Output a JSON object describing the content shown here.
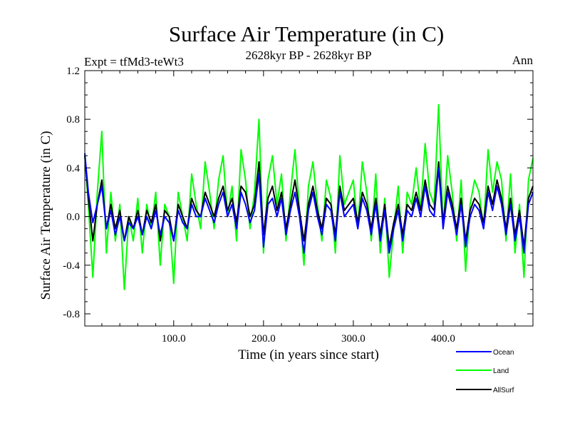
{
  "chart_data": {
    "type": "line",
    "title": "Surface Air Temperature (in C)",
    "subtitle": "2628kyr BP - 2628kyr BP",
    "experiment_label": "Expt = tfMd3-teWt3",
    "period_label": "Ann",
    "xlabel": "Time (in years since start)",
    "ylabel": "Surface Air Temperature (in C)",
    "xlim": [
      1,
      500
    ],
    "ylim": [
      -0.9,
      1.2
    ],
    "xticks": [
      100,
      200,
      300,
      400
    ],
    "xtick_labels": [
      "100.0",
      "200.0",
      "300.0",
      "400.0"
    ],
    "yticks": [
      -0.8,
      -0.4,
      0.0,
      0.4,
      0.8,
      1.2
    ],
    "ytick_labels": [
      "-0.8",
      "-0.4",
      "0.0",
      "0.4",
      "0.8",
      "1.2"
    ],
    "zero_line": 0.0,
    "legend_position": "bottom-right",
    "series": [
      {
        "name": "Land",
        "color": "#00ff00",
        "x": [
          1,
          5,
          10,
          15,
          20,
          25,
          30,
          35,
          40,
          45,
          50,
          55,
          60,
          65,
          70,
          75,
          80,
          85,
          90,
          95,
          100,
          105,
          110,
          115,
          120,
          125,
          130,
          135,
          140,
          145,
          150,
          155,
          160,
          165,
          170,
          175,
          180,
          185,
          190,
          195,
          200,
          205,
          210,
          215,
          220,
          225,
          230,
          235,
          240,
          245,
          250,
          255,
          260,
          265,
          270,
          275,
          280,
          285,
          290,
          295,
          300,
          305,
          310,
          315,
          320,
          325,
          330,
          335,
          340,
          345,
          350,
          355,
          360,
          365,
          370,
          375,
          380,
          385,
          390,
          395,
          400,
          405,
          410,
          415,
          420,
          425,
          430,
          435,
          440,
          445,
          450,
          455,
          460,
          465,
          470,
          475,
          480,
          485,
          490,
          495,
          500
        ],
        "values": [
          0.5,
          0.1,
          -0.5,
          0.2,
          0.7,
          -0.3,
          0.2,
          -0.2,
          0.1,
          -0.6,
          0.0,
          -0.2,
          0.15,
          -0.3,
          0.1,
          -0.1,
          0.2,
          -0.4,
          0.1,
          0.0,
          -0.55,
          0.2,
          0.0,
          -0.2,
          0.35,
          0.1,
          -0.1,
          0.45,
          0.2,
          -0.1,
          0.3,
          0.5,
          0.0,
          0.25,
          -0.2,
          0.55,
          0.3,
          -0.1,
          0.2,
          0.8,
          -0.3,
          0.3,
          0.5,
          0.1,
          0.35,
          -0.2,
          0.2,
          0.55,
          0.05,
          -0.4,
          0.25,
          0.45,
          0.1,
          -0.2,
          0.3,
          0.15,
          -0.3,
          0.5,
          0.1,
          0.2,
          0.3,
          -0.1,
          0.45,
          0.2,
          -0.2,
          0.35,
          -0.3,
          0.15,
          -0.5,
          -0.1,
          0.25,
          -0.3,
          0.2,
          0.1,
          0.4,
          0.05,
          0.6,
          0.2,
          0.1,
          0.92,
          -0.1,
          0.5,
          0.2,
          -0.2,
          0.3,
          -0.45,
          0.1,
          0.3,
          0.2,
          -0.1,
          0.55,
          0.2,
          0.45,
          0.3,
          -0.2,
          0.35,
          -0.3,
          0.1,
          -0.5,
          0.3,
          0.48
        ]
      },
      {
        "name": "AllSurf",
        "color": "#000000",
        "x": [
          1,
          5,
          10,
          15,
          20,
          25,
          30,
          35,
          40,
          45,
          50,
          55,
          60,
          65,
          70,
          75,
          80,
          85,
          90,
          95,
          100,
          105,
          110,
          115,
          120,
          125,
          130,
          135,
          140,
          145,
          150,
          155,
          160,
          165,
          170,
          175,
          180,
          185,
          190,
          195,
          200,
          205,
          210,
          215,
          220,
          225,
          230,
          235,
          240,
          245,
          250,
          255,
          260,
          265,
          270,
          275,
          280,
          285,
          290,
          295,
          300,
          305,
          310,
          315,
          320,
          325,
          330,
          335,
          340,
          345,
          350,
          355,
          360,
          365,
          370,
          375,
          380,
          385,
          390,
          395,
          400,
          405,
          410,
          415,
          420,
          425,
          430,
          435,
          440,
          445,
          450,
          455,
          460,
          465,
          470,
          475,
          480,
          485,
          490,
          495,
          500
        ],
        "values": [
          0.5,
          0.15,
          -0.2,
          0.1,
          0.3,
          -0.1,
          0.1,
          -0.1,
          0.05,
          -0.2,
          0.0,
          -0.1,
          0.05,
          -0.15,
          0.05,
          -0.05,
          0.1,
          -0.2,
          0.05,
          0.0,
          -0.2,
          0.1,
          0.0,
          -0.1,
          0.15,
          0.05,
          0.0,
          0.2,
          0.1,
          0.0,
          0.15,
          0.25,
          0.05,
          0.15,
          -0.05,
          0.25,
          0.2,
          0.0,
          0.1,
          0.45,
          -0.15,
          0.15,
          0.25,
          0.05,
          0.2,
          -0.1,
          0.1,
          0.3,
          0.05,
          -0.2,
          0.1,
          0.25,
          0.05,
          -0.1,
          0.15,
          0.1,
          -0.15,
          0.25,
          0.05,
          0.1,
          0.15,
          -0.05,
          0.2,
          0.1,
          -0.1,
          0.15,
          -0.15,
          0.1,
          -0.25,
          -0.05,
          0.1,
          -0.15,
          0.1,
          0.05,
          0.2,
          0.05,
          0.3,
          0.1,
          0.05,
          0.45,
          -0.05,
          0.25,
          0.1,
          -0.1,
          0.15,
          -0.2,
          0.05,
          0.15,
          0.1,
          -0.05,
          0.25,
          0.1,
          0.3,
          0.15,
          -0.1,
          0.15,
          -0.15,
          0.05,
          -0.25,
          0.15,
          0.25
        ]
      },
      {
        "name": "Ocean",
        "color": "#0000ff",
        "x": [
          1,
          5,
          10,
          15,
          20,
          25,
          30,
          35,
          40,
          45,
          50,
          55,
          60,
          65,
          70,
          75,
          80,
          85,
          90,
          95,
          100,
          105,
          110,
          115,
          120,
          125,
          130,
          135,
          140,
          145,
          150,
          155,
          160,
          165,
          170,
          175,
          180,
          185,
          190,
          195,
          200,
          205,
          210,
          215,
          220,
          225,
          230,
          235,
          240,
          245,
          250,
          255,
          260,
          265,
          270,
          275,
          280,
          285,
          290,
          295,
          300,
          305,
          310,
          315,
          320,
          325,
          330,
          335,
          340,
          345,
          350,
          355,
          360,
          365,
          370,
          375,
          380,
          385,
          390,
          395,
          400,
          405,
          410,
          415,
          420,
          425,
          430,
          435,
          440,
          445,
          450,
          455,
          460,
          465,
          470,
          475,
          480,
          485,
          490,
          495,
          500
        ],
        "values": [
          0.52,
          0.2,
          -0.05,
          0.1,
          0.25,
          -0.1,
          0.05,
          -0.15,
          0.0,
          -0.2,
          -0.05,
          -0.1,
          0.0,
          -0.15,
          0.0,
          -0.1,
          0.05,
          -0.15,
          0.0,
          -0.05,
          -0.2,
          0.05,
          -0.05,
          -0.1,
          0.1,
          0.0,
          0.0,
          0.15,
          0.05,
          -0.05,
          0.1,
          0.2,
          0.0,
          0.1,
          -0.1,
          0.2,
          0.1,
          -0.05,
          0.05,
          0.35,
          -0.25,
          0.1,
          0.15,
          0.0,
          0.15,
          -0.15,
          0.05,
          0.2,
          0.0,
          -0.3,
          0.05,
          0.2,
          0.0,
          -0.15,
          0.1,
          0.05,
          -0.2,
          0.2,
          0.0,
          0.05,
          0.1,
          -0.1,
          0.15,
          0.05,
          -0.15,
          0.1,
          -0.2,
          0.05,
          -0.3,
          -0.1,
          0.05,
          -0.2,
          0.05,
          0.0,
          0.15,
          0.0,
          0.25,
          0.05,
          0.0,
          0.4,
          -0.1,
          0.2,
          0.05,
          -0.15,
          0.1,
          -0.25,
          0.0,
          0.1,
          0.05,
          -0.1,
          0.2,
          0.05,
          0.25,
          0.1,
          -0.15,
          0.1,
          -0.2,
          0.0,
          -0.3,
          0.1,
          0.2
        ]
      }
    ]
  }
}
